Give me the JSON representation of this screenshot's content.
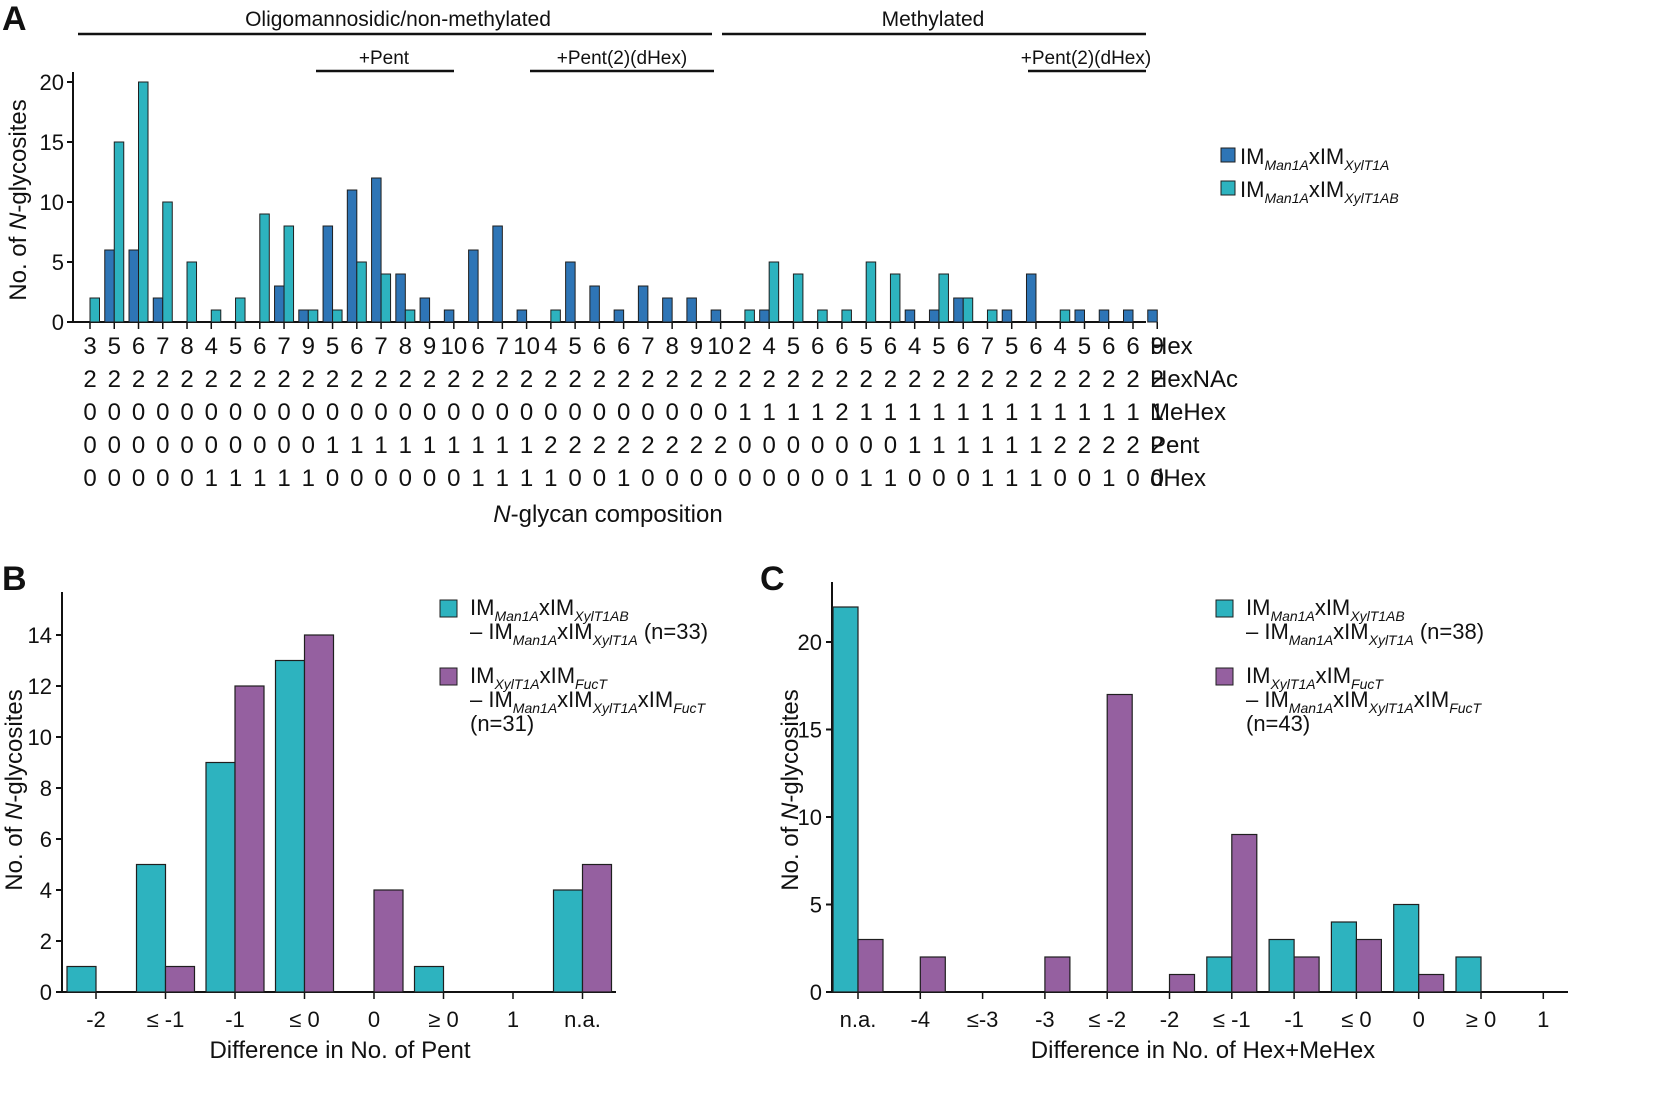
{
  "colors": {
    "dark": "#2e75b6",
    "teal": "#2db3bf",
    "purple": "#9560a0",
    "stroke": "#1f1f1f"
  },
  "panelA": {
    "letter": "A",
    "groups": [
      {
        "label": "Oligomannosidic/non-methylated"
      },
      {
        "label": "Methylated"
      }
    ],
    "subgroups": [
      {
        "label": "+Pent"
      },
      {
        "label": "+Pent(2)(dHex)"
      },
      {
        "label": "+Pent(2)(dHex)"
      }
    ],
    "ylabel_pre": "No. of ",
    "ylabel_em": "N",
    "ylabel_post": "-glycosites",
    "xlabel_em": "N",
    "xlabel_post": "-glycan composition",
    "row_labels": [
      "Hex",
      "HexNAc",
      "MeHex",
      "Pent",
      "dHex"
    ],
    "legend": [
      {
        "base": "IM",
        "sub1": "Man1A",
        "mid": "xIM",
        "sub2": "XylT1A"
      },
      {
        "base": "IM",
        "sub1": "Man1A",
        "mid": "xIM",
        "sub2": "XylT1AB"
      }
    ]
  },
  "panelB": {
    "letter": "B",
    "xlabel": "Difference in No. of Pent",
    "ylabel_pre": "No. of ",
    "ylabel_em": "N",
    "ylabel_post": "-glycosites",
    "legend": [
      {
        "line1": [
          [
            "IM",
            ""
          ],
          [
            "Man1A",
            "s"
          ],
          [
            "xIM",
            ""
          ],
          [
            "XylT1AB",
            "s"
          ]
        ],
        "line2": [
          [
            "– IM",
            ""
          ],
          [
            "Man1A",
            "s"
          ],
          [
            "xIM",
            ""
          ],
          [
            "XylT1A",
            "s"
          ],
          [
            "  (n=33)",
            ""
          ]
        ]
      },
      {
        "line1": [
          [
            "IM",
            ""
          ],
          [
            "XylT1A",
            "s"
          ],
          [
            "xIM",
            ""
          ],
          [
            "FucT",
            "s"
          ]
        ],
        "line2": [
          [
            "– IM",
            ""
          ],
          [
            "Man1A",
            "s"
          ],
          [
            "xIM",
            ""
          ],
          [
            "XylT1A",
            "s"
          ],
          [
            "xIM",
            ""
          ],
          [
            "FucT",
            "s"
          ]
        ],
        "line3": "(n=31)"
      }
    ]
  },
  "panelC": {
    "letter": "C",
    "xlabel": "Difference in No. of Hex+MeHex",
    "ylabel_pre": "No. of ",
    "ylabel_em": "N",
    "ylabel_post": "-glycosites",
    "legend": [
      {
        "line1": [
          [
            "IM",
            ""
          ],
          [
            "Man1A",
            "s"
          ],
          [
            "xIM",
            ""
          ],
          [
            "XylT1AB",
            "s"
          ]
        ],
        "line2": [
          [
            "– IM",
            ""
          ],
          [
            "Man1A",
            "s"
          ],
          [
            "xIM",
            ""
          ],
          [
            "XylT1A",
            "s"
          ],
          [
            "  (n=38)",
            ""
          ]
        ]
      },
      {
        "line1": [
          [
            "IM",
            ""
          ],
          [
            "XylT1A",
            "s"
          ],
          [
            "xIM",
            ""
          ],
          [
            "FucT",
            "s"
          ]
        ],
        "line2": [
          [
            "– IM",
            ""
          ],
          [
            "Man1A",
            "s"
          ],
          [
            "xIM",
            ""
          ],
          [
            "XylT1A",
            "s"
          ],
          [
            "xIM",
            ""
          ],
          [
            "FucT",
            "s"
          ]
        ],
        "line3": "(n=43)"
      }
    ]
  },
  "chart_data": [
    {
      "type": "bar",
      "title": "A",
      "xlabel": "N-glycan composition",
      "ylabel": "No. of N-glycosites",
      "ylim": [
        0,
        20
      ],
      "yticks": [
        0,
        5,
        10,
        15,
        20
      ],
      "composition_rows": [
        "Hex",
        "HexNAc",
        "MeHex",
        "Pent",
        "dHex"
      ],
      "categories": [
        {
          "Hex": "3",
          "HexNAc": "2",
          "MeHex": "0",
          "Pent": "0",
          "dHex": "0"
        },
        {
          "Hex": "5",
          "HexNAc": "2",
          "MeHex": "0",
          "Pent": "0",
          "dHex": "0"
        },
        {
          "Hex": "6",
          "HexNAc": "2",
          "MeHex": "0",
          "Pent": "0",
          "dHex": "0"
        },
        {
          "Hex": "7",
          "HexNAc": "2",
          "MeHex": "0",
          "Pent": "0",
          "dHex": "0"
        },
        {
          "Hex": "8",
          "HexNAc": "2",
          "MeHex": "0",
          "Pent": "0",
          "dHex": "0"
        },
        {
          "Hex": "4",
          "HexNAc": "2",
          "MeHex": "0",
          "Pent": "0",
          "dHex": "1"
        },
        {
          "Hex": "5",
          "HexNAc": "2",
          "MeHex": "0",
          "Pent": "0",
          "dHex": "1"
        },
        {
          "Hex": "6",
          "HexNAc": "2",
          "MeHex": "0",
          "Pent": "0",
          "dHex": "1"
        },
        {
          "Hex": "7",
          "HexNAc": "2",
          "MeHex": "0",
          "Pent": "0",
          "dHex": "1"
        },
        {
          "Hex": "9",
          "HexNAc": "2",
          "MeHex": "0",
          "Pent": "0",
          "dHex": "1"
        },
        {
          "Hex": "5",
          "HexNAc": "2",
          "MeHex": "0",
          "Pent": "1",
          "dHex": "0"
        },
        {
          "Hex": "6",
          "HexNAc": "2",
          "MeHex": "0",
          "Pent": "1",
          "dHex": "0"
        },
        {
          "Hex": "7",
          "HexNAc": "2",
          "MeHex": "0",
          "Pent": "1",
          "dHex": "0"
        },
        {
          "Hex": "8",
          "HexNAc": "2",
          "MeHex": "0",
          "Pent": "1",
          "dHex": "0"
        },
        {
          "Hex": "9",
          "HexNAc": "2",
          "MeHex": "0",
          "Pent": "1",
          "dHex": "0"
        },
        {
          "Hex": "10",
          "HexNAc": "2",
          "MeHex": "0",
          "Pent": "1",
          "dHex": "0"
        },
        {
          "Hex": "6",
          "HexNAc": "2",
          "MeHex": "0",
          "Pent": "1",
          "dHex": "1"
        },
        {
          "Hex": "7",
          "HexNAc": "2",
          "MeHex": "0",
          "Pent": "1",
          "dHex": "1"
        },
        {
          "Hex": "10",
          "HexNAc": "2",
          "MeHex": "0",
          "Pent": "1",
          "dHex": "1"
        },
        {
          "Hex": "4",
          "HexNAc": "2",
          "MeHex": "0",
          "Pent": "2",
          "dHex": "1"
        },
        {
          "Hex": "5",
          "HexNAc": "2",
          "MeHex": "0",
          "Pent": "2",
          "dHex": "0"
        },
        {
          "Hex": "6",
          "HexNAc": "2",
          "MeHex": "0",
          "Pent": "2",
          "dHex": "0"
        },
        {
          "Hex": "6",
          "HexNAc": "2",
          "MeHex": "0",
          "Pent": "2",
          "dHex": "1"
        },
        {
          "Hex": "7",
          "HexNAc": "2",
          "MeHex": "0",
          "Pent": "2",
          "dHex": "0"
        },
        {
          "Hex": "8",
          "HexNAc": "2",
          "MeHex": "0",
          "Pent": "2",
          "dHex": "0"
        },
        {
          "Hex": "9",
          "HexNAc": "2",
          "MeHex": "0",
          "Pent": "2",
          "dHex": "0"
        },
        {
          "Hex": "10",
          "HexNAc": "2",
          "MeHex": "0",
          "Pent": "2",
          "dHex": "0"
        },
        {
          "Hex": "2",
          "HexNAc": "2",
          "MeHex": "1",
          "Pent": "0",
          "dHex": "0"
        },
        {
          "Hex": "4",
          "HexNAc": "2",
          "MeHex": "1",
          "Pent": "0",
          "dHex": "0"
        },
        {
          "Hex": "5",
          "HexNAc": "2",
          "MeHex": "1",
          "Pent": "0",
          "dHex": "0"
        },
        {
          "Hex": "6",
          "HexNAc": "2",
          "MeHex": "1",
          "Pent": "0",
          "dHex": "0"
        },
        {
          "Hex": "6",
          "HexNAc": "2",
          "MeHex": "2",
          "Pent": "0",
          "dHex": "0"
        },
        {
          "Hex": "5",
          "HexNAc": "2",
          "MeHex": "1",
          "Pent": "0",
          "dHex": "1"
        },
        {
          "Hex": "6",
          "HexNAc": "2",
          "MeHex": "1",
          "Pent": "0",
          "dHex": "1"
        },
        {
          "Hex": "4",
          "HexNAc": "2",
          "MeHex": "1",
          "Pent": "1",
          "dHex": "0"
        },
        {
          "Hex": "5",
          "HexNAc": "2",
          "MeHex": "1",
          "Pent": "1",
          "dHex": "0"
        },
        {
          "Hex": "6",
          "HexNAc": "2",
          "MeHex": "1",
          "Pent": "1",
          "dHex": "0"
        },
        {
          "Hex": "7",
          "HexNAc": "2",
          "MeHex": "1",
          "Pent": "1",
          "dHex": "1"
        },
        {
          "Hex": "5",
          "HexNAc": "2",
          "MeHex": "1",
          "Pent": "1",
          "dHex": "1"
        },
        {
          "Hex": "6",
          "HexNAc": "2",
          "MeHex": "1",
          "Pent": "1",
          "dHex": "1"
        },
        {
          "Hex": "4",
          "HexNAc": "2",
          "MeHex": "1",
          "Pent": "2",
          "dHex": "0"
        },
        {
          "Hex": "5",
          "HexNAc": "2",
          "MeHex": "1",
          "Pent": "2",
          "dHex": "0"
        },
        {
          "Hex": "6",
          "HexNAc": "2",
          "MeHex": "1",
          "Pent": "2",
          "dHex": "1"
        },
        {
          "Hex": "6",
          "HexNAc": "2",
          "MeHex": "1",
          "Pent": "2",
          "dHex": "0"
        },
        {
          "Hex": "9",
          "HexNAc": "2",
          "MeHex": "1",
          "Pent": "2",
          "dHex": "0"
        }
      ],
      "series": [
        {
          "name": "IMMan1AxIMXylT1A",
          "color": "#2e75b6",
          "values": [
            0,
            6,
            6,
            2,
            0,
            0,
            0,
            0,
            3,
            1,
            8,
            11,
            12,
            4,
            2,
            1,
            6,
            8,
            1,
            0,
            5,
            3,
            1,
            3,
            2,
            2,
            1,
            0,
            1,
            0,
            0,
            0,
            0,
            0,
            1,
            1,
            2,
            0,
            1,
            4,
            0,
            1,
            1,
            1,
            1
          ]
        },
        {
          "name": "IMMan1AxIMXylT1AB",
          "color": "#2db3bf",
          "values": [
            2,
            15,
            20,
            10,
            5,
            1,
            2,
            9,
            8,
            1,
            1,
            5,
            4,
            1,
            0,
            0,
            0,
            0,
            0,
            1,
            0,
            0,
            0,
            0,
            0,
            0,
            0,
            1,
            5,
            4,
            1,
            1,
            5,
            4,
            0,
            4,
            2,
            1,
            0,
            0,
            1,
            0,
            0,
            0,
            0
          ]
        }
      ]
    },
    {
      "type": "bar",
      "title": "B",
      "xlabel": "Difference in No. of Pent",
      "ylabel": "No. of N-glycosites",
      "ylim": [
        0,
        15
      ],
      "yticks": [
        0,
        2,
        4,
        6,
        8,
        10,
        12,
        14
      ],
      "categories": [
        "-2",
        "≤ -1",
        "-1",
        "≤ 0",
        "0",
        "≥ 0",
        "1",
        "n.a."
      ],
      "series": [
        {
          "name": "IMMan1AxIMXylT1AB – IMMan1AxIMXylT1A (n=33)",
          "color": "#2db3bf",
          "values": [
            1,
            5,
            9,
            13,
            0,
            1,
            0,
            4
          ]
        },
        {
          "name": "IMXylT1AxIMFucT – IMMan1AxIMXylT1AxIMFucT (n=31)",
          "color": "#9560a0",
          "values": [
            0,
            1,
            12,
            14,
            4,
            0,
            0,
            5
          ]
        }
      ]
    },
    {
      "type": "bar",
      "title": "C",
      "xlabel": "Difference in No. of Hex+MeHex",
      "ylabel": "No. of N-glycosites",
      "ylim": [
        0,
        23
      ],
      "yticks": [
        0,
        5,
        10,
        15,
        20
      ],
      "categories": [
        "n.a.",
        "-4",
        "≤-3",
        "-3",
        "≤ -2",
        "-2",
        "≤ -1",
        "-1",
        "≤ 0",
        "0",
        "≥ 0",
        "1"
      ],
      "series": [
        {
          "name": "IMMan1AxIMXylT1AB – IMMan1AxIMXylT1A (n=38)",
          "color": "#2db3bf",
          "values": [
            22,
            0,
            0,
            0,
            0,
            0,
            2,
            3,
            4,
            5,
            2,
            0
          ]
        },
        {
          "name": "IMXylT1AxIMFucT – IMMan1AxIMXylT1AxIMFucT (n=43)",
          "color": "#9560a0",
          "values": [
            3,
            2,
            0,
            2,
            17,
            1,
            9,
            2,
            3,
            1,
            0,
            0
          ]
        }
      ]
    }
  ]
}
